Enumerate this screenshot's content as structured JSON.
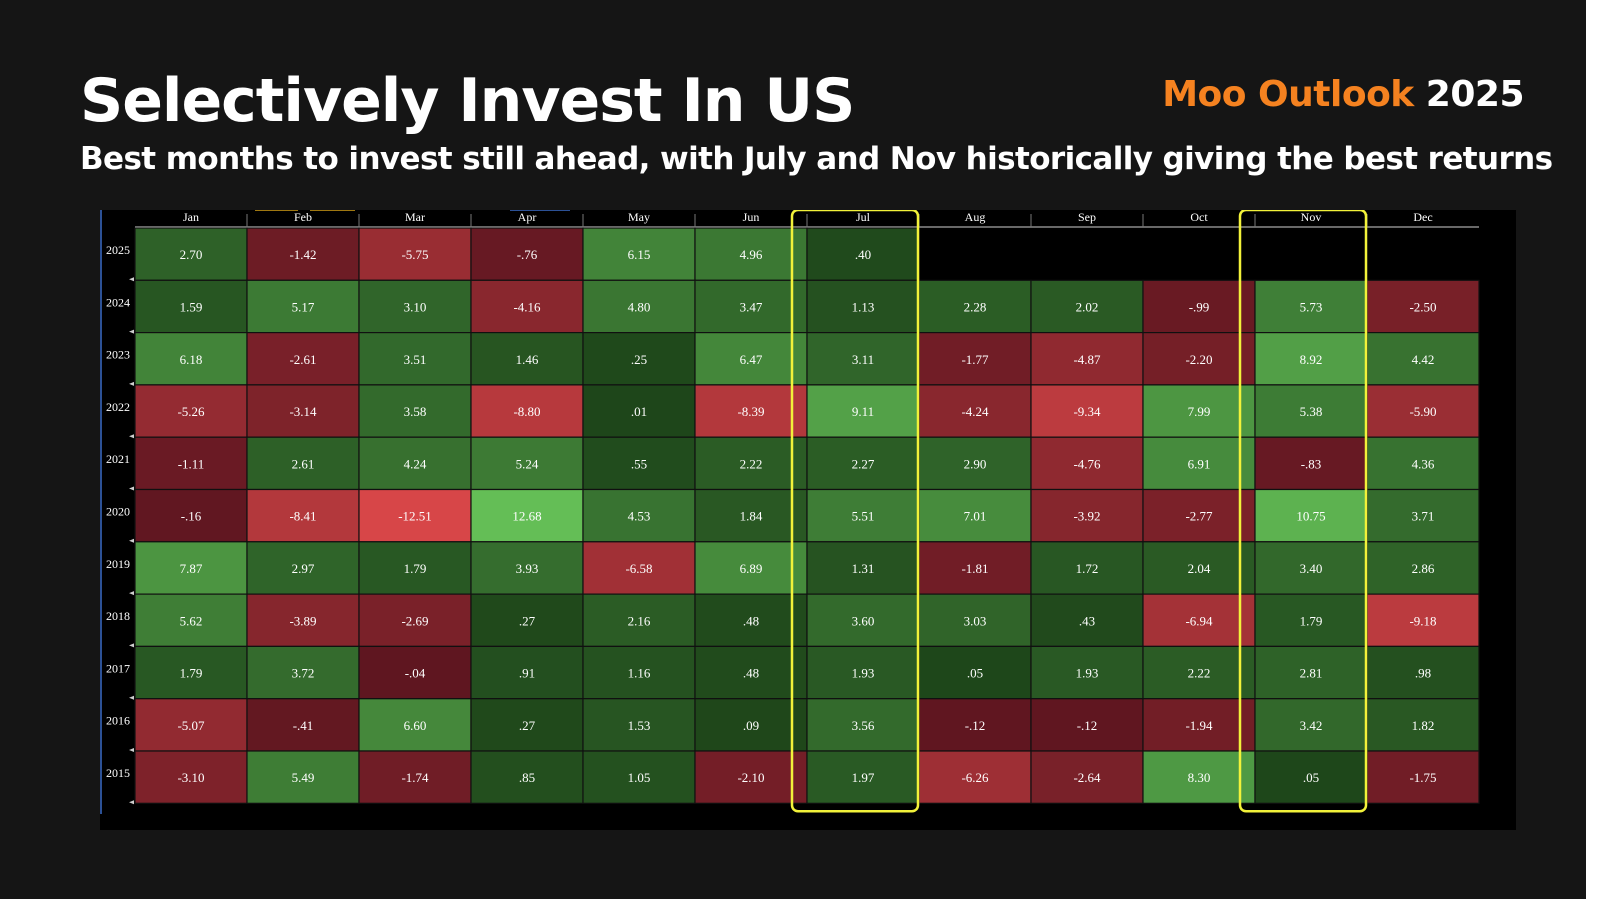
{
  "title": "Selectively Invest In US",
  "subtitle": "Best months to invest still ahead, with July and Nov historically giving the best returns",
  "brand": {
    "accent": "Moo Outlook",
    "year": "2025"
  },
  "colors": {
    "brand_accent": "#f58220",
    "highlight": "#f2f23a",
    "positive": "#2f7a2a",
    "negative": "#8b2430"
  },
  "chart_data": {
    "type": "heatmap",
    "columns": [
      "Jan",
      "Feb",
      "Mar",
      "Apr",
      "May",
      "Jun",
      "Jul",
      "Aug",
      "Sep",
      "Oct",
      "Nov",
      "Dec"
    ],
    "rows": [
      "2025",
      "2024",
      "2023",
      "2022",
      "2021",
      "2020",
      "2019",
      "2018",
      "2017",
      "2016",
      "2015"
    ],
    "cells": [
      [
        "2.70",
        "-1.42",
        "-5.75",
        "-.76",
        "6.15",
        "4.96",
        ".40",
        null,
        null,
        null,
        null,
        null
      ],
      [
        "1.59",
        "5.17",
        "3.10",
        "-4.16",
        "4.80",
        "3.47",
        "1.13",
        "2.28",
        "2.02",
        "-.99",
        "5.73",
        "-2.50"
      ],
      [
        "6.18",
        "-2.61",
        "3.51",
        "1.46",
        ".25",
        "6.47",
        "3.11",
        "-1.77",
        "-4.87",
        "-2.20",
        "8.92",
        "4.42"
      ],
      [
        "-5.26",
        "-3.14",
        "3.58",
        "-8.80",
        ".01",
        "-8.39",
        "9.11",
        "-4.24",
        "-9.34",
        "7.99",
        "5.38",
        "-5.90"
      ],
      [
        "-1.11",
        "2.61",
        "4.24",
        "5.24",
        ".55",
        "2.22",
        "2.27",
        "2.90",
        "-4.76",
        "6.91",
        "-.83",
        "4.36"
      ],
      [
        "-.16",
        "-8.41",
        "-12.51",
        "12.68",
        "4.53",
        "1.84",
        "5.51",
        "7.01",
        "-3.92",
        "-2.77",
        "10.75",
        "3.71"
      ],
      [
        "7.87",
        "2.97",
        "1.79",
        "3.93",
        "-6.58",
        "6.89",
        "1.31",
        "-1.81",
        "1.72",
        "2.04",
        "3.40",
        "2.86"
      ],
      [
        "5.62",
        "-3.89",
        "-2.69",
        ".27",
        "2.16",
        ".48",
        "3.60",
        "3.03",
        ".43",
        "-6.94",
        "1.79",
        "-9.18"
      ],
      [
        "1.79",
        "3.72",
        "-.04",
        ".91",
        "1.16",
        ".48",
        "1.93",
        ".05",
        "1.93",
        "2.22",
        "2.81",
        ".98"
      ],
      [
        "-5.07",
        "-.41",
        "6.60",
        ".27",
        "1.53",
        ".09",
        "3.56",
        "-.12",
        "-.12",
        "-1.94",
        "3.42",
        "1.82"
      ],
      [
        "-3.10",
        "5.49",
        "-1.74",
        ".85",
        "1.05",
        "-2.10",
        "1.97",
        "-6.26",
        "-2.64",
        "8.30",
        ".05",
        "-1.75"
      ]
    ],
    "highlighted_columns": [
      "Jul",
      "Nov"
    ],
    "legend": "none",
    "grid": true
  }
}
